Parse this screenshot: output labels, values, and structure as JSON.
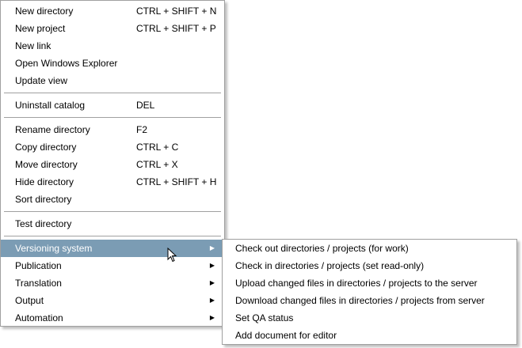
{
  "main_menu": {
    "groups": [
      [
        {
          "label": "New directory",
          "shortcut": "CTRL + SHIFT + N"
        },
        {
          "label": "New project",
          "shortcut": "CTRL + SHIFT + P"
        },
        {
          "label": "New link",
          "shortcut": ""
        },
        {
          "label": "Open Windows Explorer",
          "shortcut": ""
        },
        {
          "label": "Update view",
          "shortcut": ""
        }
      ],
      [
        {
          "label": "Uninstall catalog",
          "shortcut": "DEL"
        }
      ],
      [
        {
          "label": "Rename directory",
          "shortcut": "F2"
        },
        {
          "label": "Copy directory",
          "shortcut": "CTRL + C"
        },
        {
          "label": "Move directory",
          "shortcut": "CTRL + X"
        },
        {
          "label": "Hide directory",
          "shortcut": "CTRL + SHIFT + H"
        },
        {
          "label": "Sort directory",
          "shortcut": ""
        }
      ],
      [
        {
          "label": "Test directory",
          "shortcut": ""
        }
      ],
      [
        {
          "label": "Versioning system",
          "submenu": true,
          "highlighted": true
        },
        {
          "label": "Publication",
          "submenu": true
        },
        {
          "label": "Translation",
          "submenu": true
        },
        {
          "label": "Output",
          "submenu": true
        },
        {
          "label": "Automation",
          "submenu": true
        }
      ]
    ]
  },
  "submenu": {
    "items": [
      "Check out directories / projects (for work)",
      "Check in directories / projects (set read-only)",
      "Upload changed files in directories / projects to the server",
      "Download changed files in directories / projects from server",
      "Set QA status",
      "Add document for editor"
    ]
  },
  "colors": {
    "highlight": "#7b9cb4"
  }
}
